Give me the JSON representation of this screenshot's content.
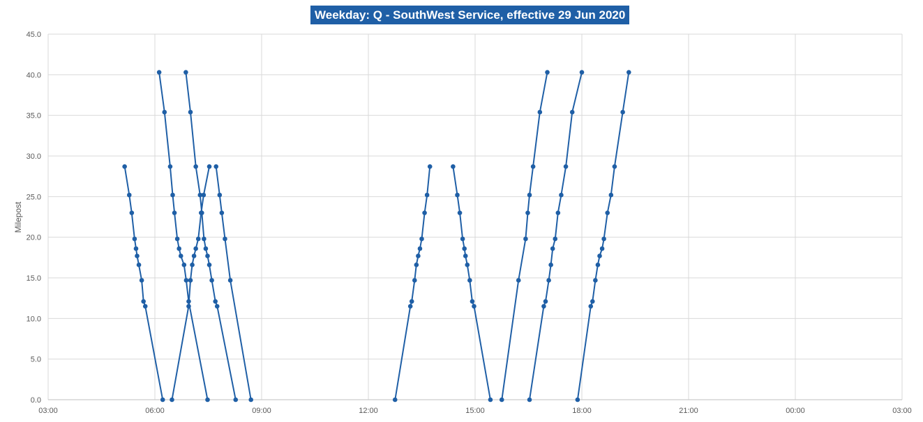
{
  "chart_data": {
    "type": "line",
    "title": "Weekday: Q - SouthWest Service, effective 29 Jun 2020",
    "xlabel": "",
    "ylabel": "Milepost",
    "x_unit": "time of day (hours, axis wraps past midnight)",
    "xlim": [
      3,
      27
    ],
    "ylim": [
      0,
      45
    ],
    "x_ticks": [
      3,
      6,
      9,
      12,
      15,
      18,
      21,
      24,
      27
    ],
    "x_tick_labels": [
      "03:00",
      "06:00",
      "09:00",
      "12:00",
      "15:00",
      "18:00",
      "21:00",
      "00:00",
      "03:00"
    ],
    "y_ticks": [
      0,
      5,
      10,
      15,
      20,
      25,
      30,
      35,
      40,
      45
    ],
    "y_tick_labels": [
      "0.0",
      "5.0",
      "10.0",
      "15.0",
      "20.0",
      "25.0",
      "30.0",
      "35.0",
      "40.0",
      "45.0"
    ],
    "grid": true,
    "legend": "none",
    "color": "#1f5fa6",
    "series": [
      {
        "x": [
          5.15,
          5.28,
          5.35,
          5.43,
          5.47,
          5.5,
          5.55,
          5.63,
          5.68,
          5.73,
          6.22
        ],
        "y": [
          28.7,
          25.2,
          23.0,
          19.8,
          18.6,
          17.7,
          16.6,
          14.7,
          12.1,
          11.5,
          0.0
        ]
      },
      {
        "x": [
          6.12,
          6.27,
          6.43,
          6.5,
          6.55,
          6.63,
          6.68,
          6.73,
          6.82,
          6.88,
          6.95,
          7.48
        ],
        "y": [
          40.3,
          35.4,
          28.7,
          25.2,
          23.0,
          19.8,
          18.6,
          17.7,
          16.6,
          14.7,
          12.1,
          0.0
        ]
      },
      {
        "x": [
          6.48,
          6.95,
          7.0,
          7.05,
          7.1,
          7.15,
          7.22,
          7.3,
          7.37,
          7.53
        ],
        "y": [
          0.0,
          11.5,
          14.7,
          16.6,
          17.7,
          18.6,
          19.8,
          23.0,
          25.2,
          28.7
        ]
      },
      {
        "x": [
          6.87,
          7.0,
          7.15,
          7.27,
          7.32,
          7.38,
          7.43,
          7.48,
          7.53,
          7.6,
          7.7,
          7.75,
          8.27
        ],
        "y": [
          40.3,
          35.4,
          28.7,
          25.2,
          23.0,
          19.8,
          18.6,
          17.7,
          16.6,
          14.7,
          12.1,
          11.5,
          0.0
        ]
      },
      {
        "x": [
          7.72,
          7.82,
          7.88,
          7.97,
          8.12,
          8.7
        ],
        "y": [
          28.7,
          25.2,
          23.0,
          19.8,
          14.7,
          0.0
        ]
      },
      {
        "x": [
          12.75,
          13.18,
          13.22,
          13.3,
          13.35,
          13.4,
          13.45,
          13.5,
          13.58,
          13.65,
          13.73
        ],
        "y": [
          0.0,
          11.5,
          12.1,
          14.7,
          16.6,
          17.7,
          18.6,
          19.8,
          23.0,
          25.2,
          28.7
        ]
      },
      {
        "x": [
          14.38,
          14.5,
          14.57,
          14.65,
          14.7,
          14.73,
          14.78,
          14.85,
          14.92,
          14.97,
          15.43
        ],
        "y": [
          28.7,
          25.2,
          23.0,
          19.8,
          18.6,
          17.7,
          16.6,
          14.7,
          12.1,
          11.5,
          0.0
        ]
      },
      {
        "x": [
          15.75,
          16.22,
          16.42,
          16.48,
          16.53,
          16.63,
          16.82,
          17.03
        ],
        "y": [
          0.0,
          14.7,
          19.8,
          23.0,
          25.2,
          28.7,
          35.4,
          40.3
        ]
      },
      {
        "x": [
          16.53,
          16.93,
          16.98,
          17.07,
          17.13,
          17.18,
          17.25,
          17.33,
          17.42,
          17.55,
          17.73,
          18.0
        ],
        "y": [
          0.0,
          11.5,
          12.1,
          14.7,
          16.6,
          18.6,
          19.8,
          23.0,
          25.2,
          28.7,
          35.4,
          40.3
        ]
      },
      {
        "x": [
          17.88,
          18.25,
          18.3,
          18.38,
          18.45,
          18.5,
          18.57,
          18.62,
          18.72,
          18.82,
          18.92,
          19.15,
          19.32
        ],
        "y": [
          0.0,
          11.5,
          12.1,
          14.7,
          16.6,
          17.7,
          18.6,
          19.8,
          23.0,
          25.2,
          28.7,
          35.4,
          40.3
        ]
      }
    ]
  }
}
